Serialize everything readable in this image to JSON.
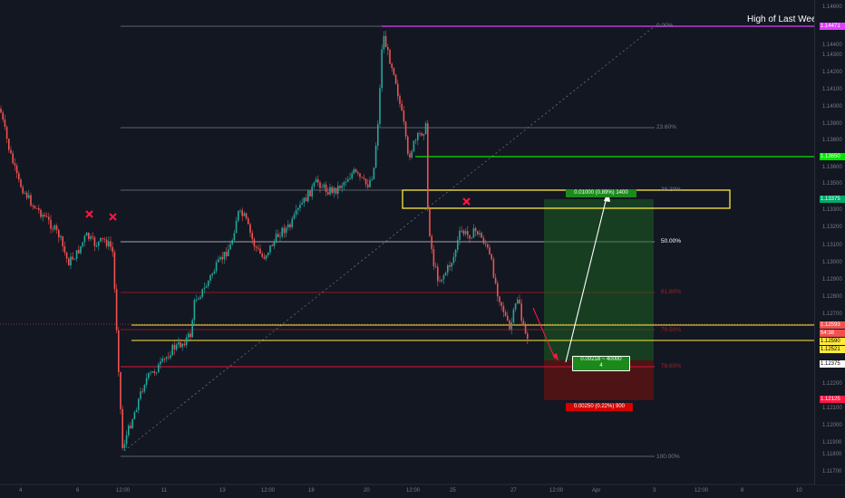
{
  "chart": {
    "annotation_high": "High of Last Week",
    "price_axis": [
      "1.14600",
      "1.14471",
      "1.14400",
      "1.14300",
      "1.14200",
      "1.14100",
      "1.14000",
      "1.13900",
      "1.13800",
      "1.13700",
      "1.13650",
      "1.13600",
      "1.13500",
      "1.13375",
      "1.13300",
      "1.13200",
      "1.13100",
      "1.13000",
      "1.12900",
      "1.12800",
      "1.12700",
      "1.12593",
      "1.12590",
      "1.12521",
      "1.12375",
      "1.12300",
      "1.12200",
      "1.12125",
      "1.12100",
      "1.12000",
      "1.11900",
      "1.11800",
      "1.11700"
    ],
    "time_axis": [
      "4",
      "6",
      "12:00",
      "11",
      "13",
      "12:00",
      "18",
      "20",
      "12:00",
      "25",
      "27",
      "12:00",
      "Apr",
      "3",
      "12:00",
      "8",
      "10"
    ],
    "fib_levels": [
      {
        "label": "0.00%"
      },
      {
        "label": "23.60%"
      },
      {
        "label": "38.20%"
      },
      {
        "label": "50.00%"
      },
      {
        "label": "61.80%"
      },
      {
        "label": "70.50%"
      },
      {
        "label": "78.60%"
      },
      {
        "label": "100.00%"
      }
    ],
    "tags": {
      "high": "1.14471",
      "green_level": "1.13650",
      "target": "1.13375",
      "current": "1.12593",
      "countdown": "54:38",
      "yellow_level": "1.12590",
      "level2": "1.12521",
      "entry": "1.12375",
      "stop": "1.12125"
    },
    "position_labels": {
      "target_text": "0.01000 (0.89%) 1400",
      "entry_text_1": "0.00218 ~ 40000",
      "entry_text_2": "4",
      "stop_text": "0.00250 (0.22%) 900"
    },
    "colors": {
      "background": "#131722",
      "up": "#26a69a",
      "down": "#ef5350",
      "high_line": "#e040fb",
      "green_line": "#00e600",
      "yellow": "#ffeb3b",
      "stop": "#ff1744",
      "target_zone": "#1b5e20",
      "stop_zone": "#5d1313"
    },
    "markers": [
      "x-marker",
      "x-marker",
      "x-marker"
    ]
  }
}
